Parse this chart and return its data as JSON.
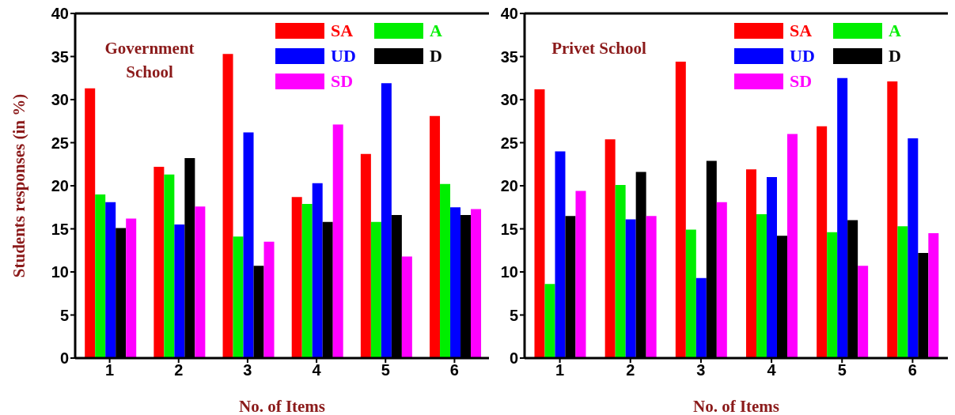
{
  "chart_data": [
    {
      "type": "bar",
      "title": "Government School",
      "xlabel": "No. of Items",
      "ylabel": "Students responses (in %)",
      "categories": [
        "1",
        "2",
        "3",
        "4",
        "5",
        "6"
      ],
      "ylim": [
        0,
        40
      ],
      "yticks": [
        0,
        5,
        10,
        15,
        20,
        25,
        30,
        35,
        40
      ],
      "grid": false,
      "legend": "top right",
      "series": [
        {
          "name": "SA",
          "color": "#ff0000",
          "values": [
            31.3,
            22.2,
            35.3,
            18.7,
            23.7,
            28.1
          ]
        },
        {
          "name": "A",
          "color": "#00ee00",
          "values": [
            19.0,
            21.3,
            14.1,
            17.9,
            15.8,
            20.2
          ]
        },
        {
          "name": "UD",
          "color": "#0000ff",
          "values": [
            18.1,
            15.5,
            26.2,
            20.3,
            31.9,
            17.5
          ]
        },
        {
          "name": "D",
          "color": "#000000",
          "values": [
            15.1,
            23.2,
            10.7,
            15.8,
            16.6,
            16.6
          ]
        },
        {
          "name": "SD",
          "color": "#ff00ff",
          "values": [
            16.2,
            17.6,
            13.5,
            27.1,
            11.8,
            17.3
          ]
        }
      ]
    },
    {
      "type": "bar",
      "title": "Privet School",
      "xlabel": "No. of Items",
      "categories": [
        "1",
        "2",
        "3",
        "4",
        "5",
        "6"
      ],
      "ylim": [
        0,
        40
      ],
      "yticks": [
        0,
        5,
        10,
        15,
        20,
        25,
        30,
        35,
        40
      ],
      "grid": false,
      "legend": "top right",
      "series": [
        {
          "name": "SA",
          "color": "#ff0000",
          "values": [
            31.2,
            25.4,
            34.4,
            21.9,
            26.9,
            32.1
          ]
        },
        {
          "name": "A",
          "color": "#00ee00",
          "values": [
            8.6,
            20.1,
            14.9,
            16.7,
            14.6,
            15.3
          ]
        },
        {
          "name": "UD",
          "color": "#0000ff",
          "values": [
            24.0,
            16.1,
            9.3,
            21.0,
            32.5,
            25.5
          ]
        },
        {
          "name": "D",
          "color": "#000000",
          "values": [
            16.5,
            21.6,
            22.9,
            14.2,
            16.0,
            12.2
          ]
        },
        {
          "name": "SD",
          "color": "#ff00ff",
          "values": [
            19.4,
            16.5,
            18.1,
            26.0,
            10.7,
            14.5
          ]
        }
      ]
    }
  ]
}
